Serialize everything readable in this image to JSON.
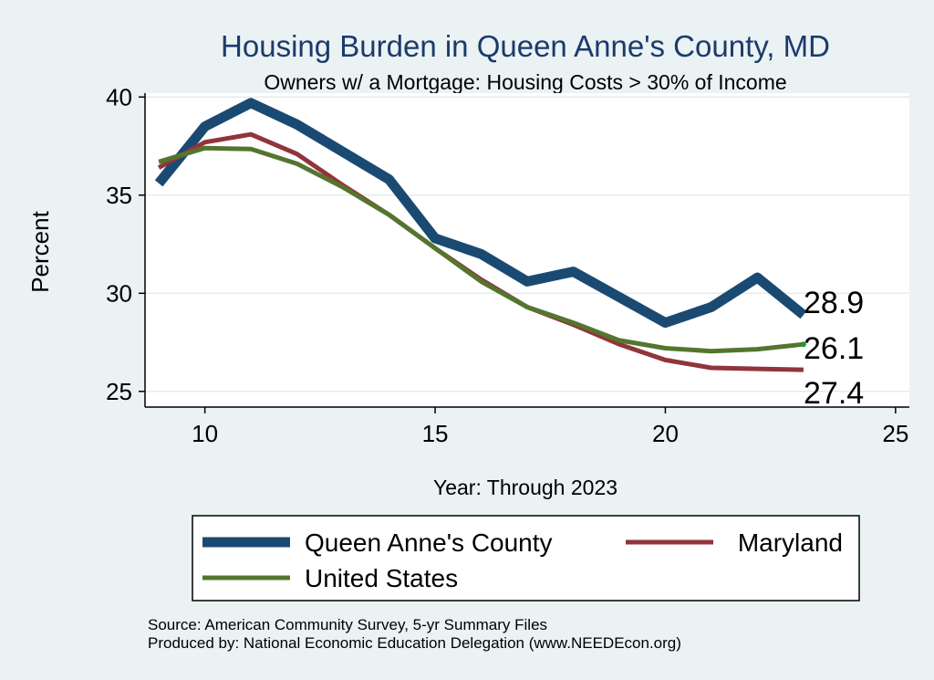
{
  "chart_data": {
    "type": "line",
    "title": "Housing Burden in Queen Anne's County, MD",
    "subtitle": "Owners w/ a Mortgage: Housing Costs > 30% of Income",
    "xlabel": "Year: Through 2023",
    "ylabel": "Percent",
    "xlim": [
      8.7,
      25.3
    ],
    "ylim": [
      24.2,
      40.2
    ],
    "xticks": [
      10,
      15,
      20,
      25
    ],
    "yticks": [
      25,
      30,
      35,
      40
    ],
    "grid": "horizontal",
    "legend_position": "bottom",
    "x": [
      9,
      10,
      11,
      12,
      13,
      14,
      15,
      16,
      17,
      18,
      19,
      20,
      21,
      22,
      23
    ],
    "series": [
      {
        "name": "Queen Anne's County",
        "color": "#1a4a72",
        "values": [
          35.6,
          38.5,
          39.7,
          38.6,
          37.2,
          35.8,
          32.8,
          32.0,
          30.6,
          31.1,
          29.8,
          28.5,
          29.3,
          30.8,
          28.9
        ],
        "end_label": "28.9"
      },
      {
        "name": "Maryland",
        "color": "#90353b",
        "values": [
          36.4,
          37.7,
          38.1,
          37.1,
          35.5,
          34.0,
          32.3,
          30.7,
          29.3,
          28.4,
          27.4,
          26.6,
          26.2,
          26.15,
          26.1
        ],
        "end_label": "26.1"
      },
      {
        "name": "United States",
        "color": "#55752f",
        "values": [
          36.7,
          37.4,
          37.35,
          36.6,
          35.4,
          34.0,
          32.3,
          30.6,
          29.3,
          28.5,
          27.6,
          27.2,
          27.05,
          27.15,
          27.4
        ],
        "end_label": "27.4"
      }
    ]
  },
  "footer": {
    "source": "Source: American Community Survey, 5-yr Summary Files",
    "produced": "Produced by: National Economic Education Delegation (www.NEEDEcon.org)"
  }
}
